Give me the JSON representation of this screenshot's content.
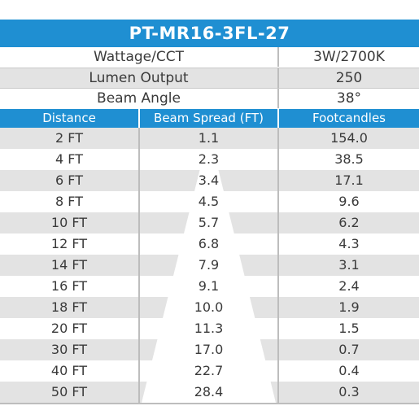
{
  "title": "PT-MR16-3FL-27",
  "specs": [
    {
      "label": "Wattage/CCT",
      "value": "3W/2700K"
    },
    {
      "label": "Lumen Output",
      "value": "250"
    },
    {
      "label": "Beam Angle",
      "value": "38°"
    }
  ],
  "columns": {
    "distance": "Distance",
    "beam_spread": "Beam Spread (FT)",
    "footcandles": "Footcandles"
  },
  "rows": [
    {
      "distance": "2 FT",
      "beam_spread": "1.1",
      "footcandles": "154.0"
    },
    {
      "distance": "4 FT",
      "beam_spread": "2.3",
      "footcandles": "38.5"
    },
    {
      "distance": "6 FT",
      "beam_spread": "3.4",
      "footcandles": "17.1"
    },
    {
      "distance": "8 FT",
      "beam_spread": "4.5",
      "footcandles": "9.6"
    },
    {
      "distance": "10 FT",
      "beam_spread": "5.7",
      "footcandles": "6.2"
    },
    {
      "distance": "12 FT",
      "beam_spread": "6.8",
      "footcandles": "4.3"
    },
    {
      "distance": "14 FT",
      "beam_spread": "7.9",
      "footcandles": "3.1"
    },
    {
      "distance": "16 FT",
      "beam_spread": "9.1",
      "footcandles": "2.4"
    },
    {
      "distance": "18 FT",
      "beam_spread": "10.0",
      "footcandles": "1.9"
    },
    {
      "distance": "20 FT",
      "beam_spread": "11.3",
      "footcandles": "1.5"
    },
    {
      "distance": "30 FT",
      "beam_spread": "17.0",
      "footcandles": "0.7"
    },
    {
      "distance": "40 FT",
      "beam_spread": "22.7",
      "footcandles": "0.4"
    },
    {
      "distance": "50 FT",
      "beam_spread": "28.4",
      "footcandles": "0.3"
    }
  ],
  "colors": {
    "header_blue": "#1f8fd2",
    "row_shade": "#e3e3e3"
  }
}
